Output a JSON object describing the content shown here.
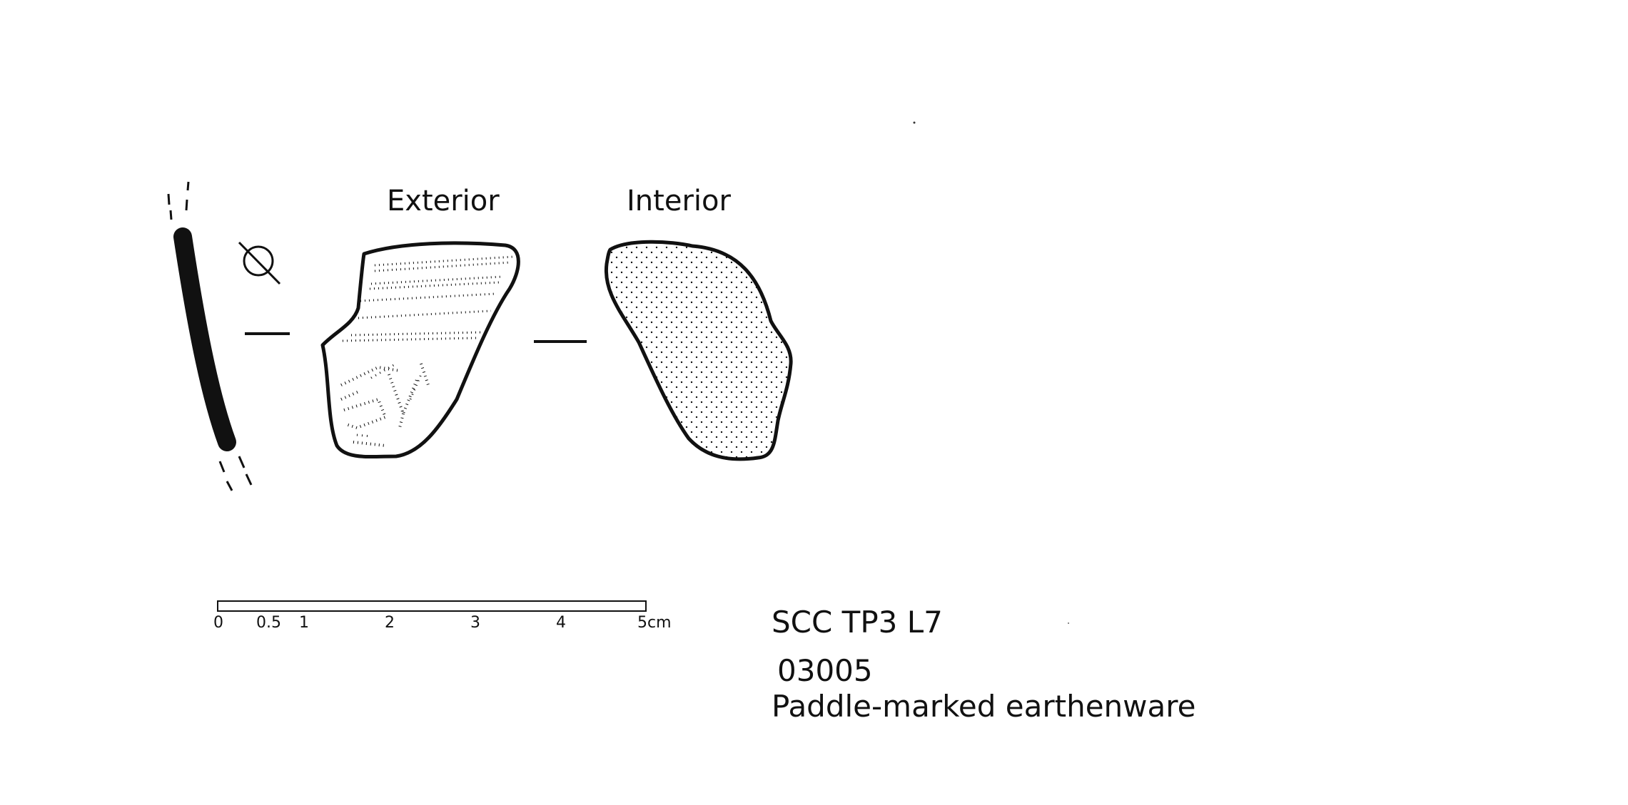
{
  "views": {
    "exterior_label": "Exterior",
    "interior_label": "Interior"
  },
  "scale_bar": {
    "ticks": [
      "0",
      "0.5",
      "1",
      "2",
      "3",
      "4",
      "5cm"
    ],
    "values_cm": [
      0,
      0.5,
      1,
      2,
      3,
      4,
      5
    ],
    "max_cm": 5
  },
  "specimen": {
    "context": "SCC TP3 L7",
    "number": "03005",
    "description": "Paddle-marked earthenware"
  },
  "colors": {
    "ink": "#111111",
    "paper": "#ffffff"
  },
  "symbols": [
    "diameter-symbol",
    "section-divider"
  ]
}
